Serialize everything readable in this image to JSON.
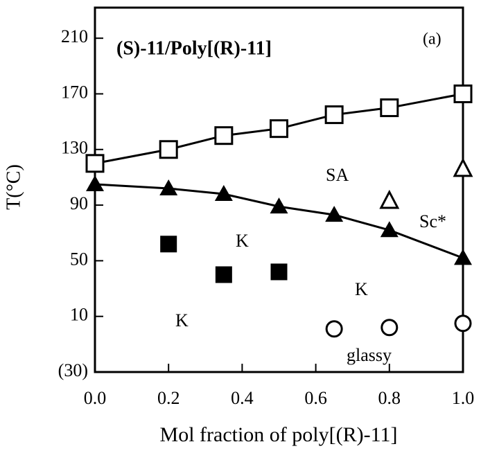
{
  "chart_data": {
    "type": "scatter",
    "title": "(S)-11/Poly[(R)-11]",
    "panel_label": "(a)",
    "x_label": "Mol fraction of poly[(R)-11]",
    "y_label": "T(°C)",
    "xlim": [
      0,
      1
    ],
    "ylim": [
      -30,
      232
    ],
    "xticks": [
      {
        "value": 0,
        "label": "0.0"
      },
      0.2,
      0.4,
      0.6,
      0.8,
      {
        "value": 1,
        "label": "1.0"
      }
    ],
    "yticks": [
      {
        "value": -30,
        "label": "(30)"
      },
      10,
      50,
      90,
      130,
      170,
      210
    ],
    "grid": false,
    "series": [
      {
        "marker": "open-square",
        "line": true,
        "color": "#000000",
        "x": [
          0,
          0.2,
          0.35,
          0.5,
          0.65,
          0.8,
          1.0
        ],
        "values": [
          120,
          130,
          140,
          145,
          155,
          160,
          170
        ]
      },
      {
        "marker": "filled-triangle",
        "line": true,
        "color": "#000000",
        "x": [
          0,
          0.2,
          0.35,
          0.5,
          0.65,
          0.8,
          1.0
        ],
        "values": [
          105,
          102,
          98,
          89,
          83,
          72,
          52
        ]
      },
      {
        "marker": "filled-square",
        "line": false,
        "color": "#000000",
        "x": [
          0.2,
          0.35,
          0.5
        ],
        "values": [
          62,
          40,
          42
        ]
      },
      {
        "marker": "open-triangle",
        "line": false,
        "color": "#000000",
        "x": [
          0.8,
          1.0
        ],
        "values": [
          93,
          116
        ]
      },
      {
        "marker": "open-circle",
        "line": false,
        "color": "#000000",
        "x": [
          0.65,
          0.8,
          1.0
        ],
        "values": [
          1,
          2,
          5
        ]
      }
    ],
    "annotations": [
      "SA",
      "Sc*",
      "K",
      "K",
      "K",
      "glassy"
    ]
  }
}
